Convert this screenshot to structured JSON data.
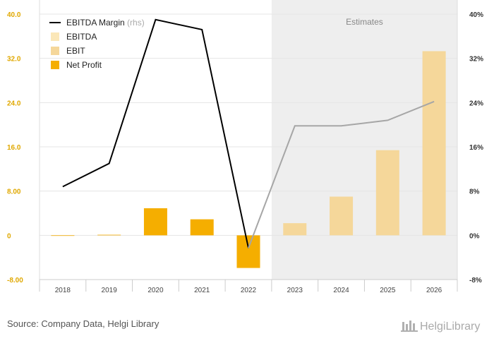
{
  "chart_data": {
    "type": "bar",
    "categories": [
      "2018",
      "2019",
      "2020",
      "2021",
      "2022",
      "2023",
      "2024",
      "2025",
      "2026"
    ],
    "estimates_label": "Estimates",
    "estimates_from": "2023",
    "left_axis": {
      "ylim": [
        -8,
        40
      ],
      "ticks": [
        "-8.00",
        "0",
        "8.00",
        "16.0",
        "24.0",
        "32.0",
        "40.0"
      ],
      "tick_values": [
        -8,
        0,
        8,
        16,
        24,
        32,
        40
      ]
    },
    "right_axis": {
      "ylim": [
        -8,
        40
      ],
      "ticks": [
        "-8%",
        "0%",
        "8%",
        "16%",
        "24%",
        "32%",
        "40%"
      ],
      "tick_values": [
        -8,
        0,
        8,
        16,
        24,
        32,
        40
      ]
    },
    "series": [
      {
        "name": "EBITDA Margin",
        "note": "(rhs)",
        "kind": "line",
        "axis": "right",
        "color": "#000000",
        "estimate_color": "#a6a6a6",
        "values": [
          8.8,
          13.0,
          39.0,
          37.2,
          -2.3,
          19.8,
          19.8,
          20.8,
          24.2
        ]
      },
      {
        "name": "EBITDA",
        "kind": "bar",
        "color": "#fbe7b8",
        "values": [
          null,
          null,
          null,
          null,
          null,
          null,
          null,
          null,
          null
        ]
      },
      {
        "name": "EBIT",
        "kind": "bar",
        "color": "#f5d79a",
        "values": [
          null,
          null,
          null,
          null,
          null,
          2.2,
          7.0,
          15.4,
          33.3
        ]
      },
      {
        "name": "Net Profit",
        "kind": "bar",
        "color": "#f5ae00",
        "values": [
          0,
          0.1,
          4.9,
          2.9,
          -5.9,
          null,
          null,
          null,
          null
        ]
      }
    ]
  },
  "footer": {
    "source": "Source: Company Data, Helgi Library",
    "brand": "HelgiLibrary"
  }
}
